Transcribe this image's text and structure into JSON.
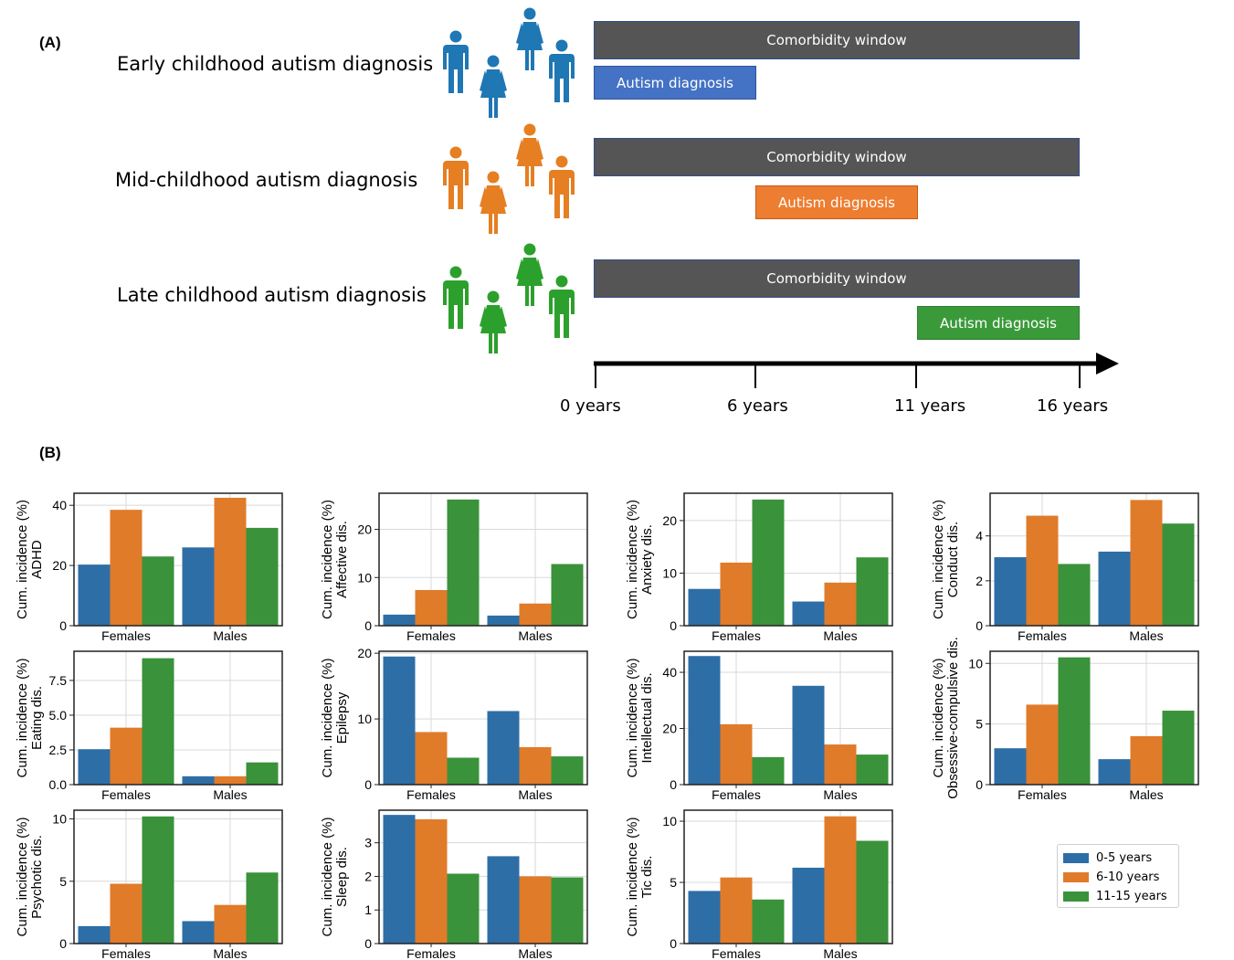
{
  "panel_a": {
    "tag": "(A)",
    "rows": [
      {
        "label": "Early childhood autism diagnosis",
        "window_label": "Comorbidity window",
        "diagnosis_label": "Autism diagnosis",
        "color": "#1f77b4",
        "box_color": "#4472c4",
        "diag_start": 0,
        "diag_end": 6
      },
      {
        "label": "Mid-childhood autism diagnosis",
        "window_label": "Comorbidity window",
        "diagnosis_label": "Autism diagnosis",
        "color": "#e67e22",
        "box_color": "#ed7d31",
        "diag_start": 6,
        "diag_end": 12
      },
      {
        "label": "Late childhood autism diagnosis",
        "window_label": "Comorbidity window",
        "diagnosis_label": "Autism diagnosis",
        "color": "#2ca02c",
        "box_color": "#3a9a3a",
        "diag_start": 12,
        "diag_end": 18
      }
    ],
    "window_color": "#555555",
    "timeline_ticks": [
      "0 years",
      "6 years",
      "11 years",
      "16 years"
    ]
  },
  "panel_b": {
    "tag": "(B)",
    "legend": [
      {
        "label": "0-5 years",
        "color": "#2e6ea6"
      },
      {
        "label": "6-10 years",
        "color": "#e07b2a"
      },
      {
        "label": "11-15 years",
        "color": "#3a923a"
      }
    ]
  },
  "chart_data": [
    {
      "type": "bar",
      "ylabel": "Cum. incidence (%)\nADHD",
      "categories": [
        "Females",
        "Males"
      ],
      "ylim": [
        0,
        44
      ],
      "yticks": [
        0,
        20,
        40
      ],
      "series": [
        {
          "name": "0-5 years",
          "values": [
            20.3,
            26.0
          ]
        },
        {
          "name": "6-10 years",
          "values": [
            38.5,
            42.5
          ]
        },
        {
          "name": "11-15 years",
          "values": [
            23.0,
            32.5
          ]
        }
      ]
    },
    {
      "type": "bar",
      "ylabel": "Cum. incidence (%)\nAffective dis.",
      "categories": [
        "Females",
        "Males"
      ],
      "ylim": [
        0,
        27.5
      ],
      "yticks": [
        0,
        10,
        20
      ],
      "series": [
        {
          "name": "0-5 years",
          "values": [
            2.3,
            2.1
          ]
        },
        {
          "name": "6-10 years",
          "values": [
            7.4,
            4.6
          ]
        },
        {
          "name": "11-15 years",
          "values": [
            26.2,
            12.8
          ]
        }
      ]
    },
    {
      "type": "bar",
      "ylabel": "Cum. incidence (%)\nAnxiety dis.",
      "categories": [
        "Females",
        "Males"
      ],
      "ylim": [
        0,
        25.2
      ],
      "yticks": [
        0,
        10,
        20
      ],
      "series": [
        {
          "name": "0-5 years",
          "values": [
            7.0,
            4.6
          ]
        },
        {
          "name": "6-10 years",
          "values": [
            12.0,
            8.2
          ]
        },
        {
          "name": "11-15 years",
          "values": [
            24.0,
            13.0
          ]
        }
      ]
    },
    {
      "type": "bar",
      "ylabel": "Cum. incidence (%)\nConduct dis.",
      "categories": [
        "Females",
        "Males"
      ],
      "ylim": [
        0,
        5.9
      ],
      "yticks": [
        0,
        2,
        4
      ],
      "series": [
        {
          "name": "0-5 years",
          "values": [
            3.05,
            3.3
          ]
        },
        {
          "name": "6-10 years",
          "values": [
            4.9,
            5.6
          ]
        },
        {
          "name": "11-15 years",
          "values": [
            2.75,
            4.55
          ]
        }
      ]
    },
    {
      "type": "bar",
      "ylabel": "Cum. incidence (%)\nEating dis.",
      "categories": [
        "Females",
        "Males"
      ],
      "ylim": [
        0,
        9.6
      ],
      "yticks": [
        0,
        2.5,
        5.0,
        7.5
      ],
      "ytick_labels": [
        "0.0",
        "2.5",
        "5.0",
        "7.5"
      ],
      "series": [
        {
          "name": "0-5 years",
          "values": [
            2.55,
            0.6
          ]
        },
        {
          "name": "6-10 years",
          "values": [
            4.1,
            0.6
          ]
        },
        {
          "name": "11-15 years",
          "values": [
            9.1,
            1.6
          ]
        }
      ]
    },
    {
      "type": "bar",
      "ylabel": "Cum. incidence (%)\nEpilepsy",
      "categories": [
        "Females",
        "Males"
      ],
      "ylim": [
        0,
        20.3
      ],
      "yticks": [
        0,
        10,
        20
      ],
      "series": [
        {
          "name": "0-5 years",
          "values": [
            19.5,
            11.2
          ]
        },
        {
          "name": "6-10 years",
          "values": [
            8.0,
            5.7
          ]
        },
        {
          "name": "11-15 years",
          "values": [
            4.1,
            4.3
          ]
        }
      ]
    },
    {
      "type": "bar",
      "ylabel": "Cum. incidence (%)\nIntellectual dis.",
      "categories": [
        "Females",
        "Males"
      ],
      "ylim": [
        0,
        47.5
      ],
      "yticks": [
        0,
        20,
        40
      ],
      "series": [
        {
          "name": "0-5 years",
          "values": [
            45.8,
            35.2
          ]
        },
        {
          "name": "6-10 years",
          "values": [
            21.5,
            14.3
          ]
        },
        {
          "name": "11-15 years",
          "values": [
            9.8,
            10.7
          ]
        }
      ]
    },
    {
      "type": "bar",
      "ylabel": "Cum. incidence (%)\nObsessive-compulsive dis.",
      "categories": [
        "Females",
        "Males"
      ],
      "ylim": [
        0,
        11.0
      ],
      "yticks": [
        0,
        5,
        10
      ],
      "series": [
        {
          "name": "0-5 years",
          "values": [
            3.0,
            2.1
          ]
        },
        {
          "name": "6-10 years",
          "values": [
            6.6,
            4.0
          ]
        },
        {
          "name": "11-15 years",
          "values": [
            10.5,
            6.1
          ]
        }
      ]
    },
    {
      "type": "bar",
      "ylabel": "Cum. incidence (%)\nPsychotic dis.",
      "categories": [
        "Females",
        "Males"
      ],
      "ylim": [
        0,
        10.7
      ],
      "yticks": [
        0,
        5,
        10
      ],
      "series": [
        {
          "name": "0-5 years",
          "values": [
            1.4,
            1.8
          ]
        },
        {
          "name": "6-10 years",
          "values": [
            4.8,
            3.1
          ]
        },
        {
          "name": "11-15 years",
          "values": [
            10.2,
            5.7
          ]
        }
      ]
    },
    {
      "type": "bar",
      "ylabel": "Cum. incidence (%)\nSleep dis.",
      "categories": [
        "Females",
        "Males"
      ],
      "ylim": [
        0,
        3.97
      ],
      "yticks": [
        0,
        1,
        2,
        3
      ],
      "series": [
        {
          "name": "0-5 years",
          "values": [
            3.83,
            2.6
          ]
        },
        {
          "name": "6-10 years",
          "values": [
            3.7,
            2.0
          ]
        },
        {
          "name": "11-15 years",
          "values": [
            2.08,
            1.97
          ]
        }
      ]
    },
    {
      "type": "bar",
      "ylabel": "Cum. incidence (%)\nTic dis.",
      "categories": [
        "Females",
        "Males"
      ],
      "ylim": [
        0,
        10.9
      ],
      "yticks": [
        0,
        5,
        10
      ],
      "series": [
        {
          "name": "0-5 years",
          "values": [
            4.3,
            6.2
          ]
        },
        {
          "name": "6-10 years",
          "values": [
            5.4,
            10.4
          ]
        },
        {
          "name": "11-15 years",
          "values": [
            3.6,
            8.4
          ]
        }
      ]
    }
  ]
}
